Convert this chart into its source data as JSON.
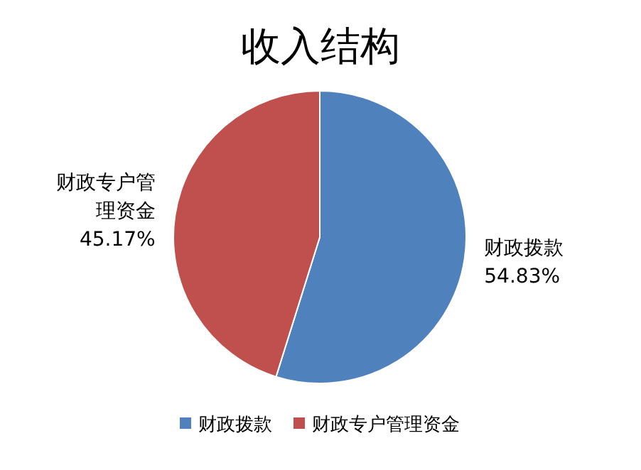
{
  "chart_data": {
    "type": "pie",
    "title": "收入结构",
    "categories": [
      "财政拨款",
      "财政专户管理资金"
    ],
    "values": [
      54.83,
      45.17
    ],
    "value_labels": [
      "54.83%",
      "45.17%"
    ],
    "colors": [
      "#4f81bd",
      "#c0504d"
    ],
    "legend": "bottom"
  }
}
